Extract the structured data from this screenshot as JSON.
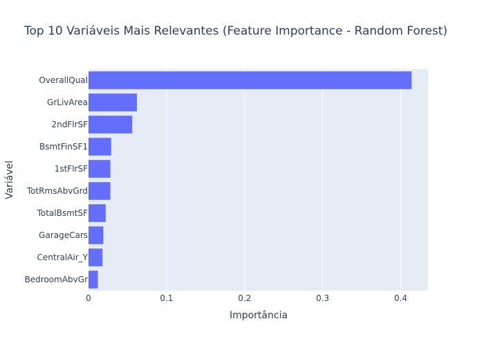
{
  "chart_data": {
    "type": "bar",
    "orientation": "horizontal",
    "title": "Top 10 Variáveis Mais Relevantes (Feature Importance - Random Forest)",
    "xlabel": "Importância",
    "ylabel": "Variável",
    "categories": [
      "OverallQual",
      "GrLivArea",
      "2ndFlrSF",
      "BsmtFinSF1",
      "1stFlrSF",
      "TotRmsAbvGrd",
      "TotalBsmtSF",
      "GarageCars",
      "CentralAir_Y",
      "BedroomAbvGr"
    ],
    "values": [
      0.414,
      0.062,
      0.056,
      0.029,
      0.028,
      0.028,
      0.022,
      0.019,
      0.018,
      0.012
    ],
    "xlim": [
      0,
      0.435
    ],
    "xticks": [
      0,
      0.1,
      0.2,
      0.3,
      0.4
    ],
    "xtick_labels": [
      "0",
      "0.1",
      "0.2",
      "0.3",
      "0.4"
    ],
    "grid": true,
    "bar_color": "#636efa",
    "plot_bg_color": "#e5ecf6",
    "text_color": "#2a3f5f"
  }
}
